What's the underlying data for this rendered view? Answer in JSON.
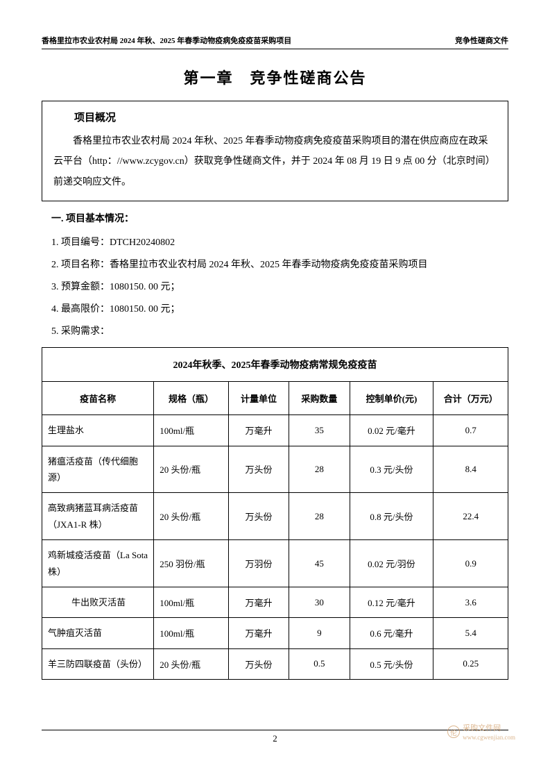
{
  "header": {
    "left": "香格里拉市农业农村局 2024 年秋、2025 年春季动物疫病免疫疫苗采购项目",
    "right": "竞争性磋商文件"
  },
  "main_title": "第一章　竞争性磋商公告",
  "overview": {
    "heading": "项目概况",
    "text": "香格里拉市农业农村局 2024 年秋、2025 年春季动物疫病免疫疫苗采购项目的潜在供应商应在政采云平台（http：//www.zcygov.cn）获取竞争性磋商文件，并于 2024 年 08 月 19 日 9 点 00 分（北京时间）前递交响应文件。"
  },
  "section1": {
    "heading": "一. 项目基本情况：",
    "item1": "1. 项目编号：DTCH20240802",
    "item2": "2. 项目名称：香格里拉市农业农村局 2024 年秋、2025 年春季动物疫病免疫疫苗采购项目",
    "item3": "3. 预算金额：1080150. 00 元；",
    "item4": "4. 最高限价：1080150. 00 元；",
    "item5": "5. 采购需求："
  },
  "table": {
    "title": "2024年秋季、2025年春季动物疫病常规免疫疫苗",
    "headers": {
      "name": "疫苗名称",
      "spec": "规格（瓶）",
      "unit": "计量单位",
      "qty": "采购数量",
      "price": "控制单价(元)",
      "total": "合计（万元）"
    },
    "rows": [
      {
        "name": "生理盐水",
        "spec": "100ml/瓶",
        "unit": "万毫升",
        "qty": "35",
        "price": "0.02 元/毫升",
        "total": "0.7"
      },
      {
        "name": "猪瘟活疫苗（传代细胞源）",
        "spec": "20 头份/瓶",
        "unit": "万头份",
        "qty": "28",
        "price": "0.3 元/头份",
        "total": "8.4"
      },
      {
        "name": "高致病猪蓝耳病活疫苗（JXA1-R 株）",
        "spec": "20 头份/瓶",
        "unit": "万头份",
        "qty": "28",
        "price": "0.8 元/头份",
        "total": "22.4"
      },
      {
        "name": "鸡新城疫活疫苗（La Sota 株）",
        "spec": "250 羽份/瓶",
        "unit": "万羽份",
        "qty": "45",
        "price": "0.02 元/羽份",
        "total": "0.9"
      },
      {
        "name": "牛出败灭活苗",
        "spec": "100ml/瓶",
        "unit": "万毫升",
        "qty": "30",
        "price": "0.12 元/毫升",
        "total": "3.6"
      },
      {
        "name": "气肿疽灭活苗",
        "spec": "100ml/瓶",
        "unit": "万毫升",
        "qty": "9",
        "price": "0.6 元/毫升",
        "total": "5.4"
      },
      {
        "name": "羊三防四联疫苗（头份）",
        "spec": "20 头份/瓶",
        "unit": "万头份",
        "qty": "0.5",
        "price": "0.5 元/头份",
        "total": "0.25"
      }
    ]
  },
  "footer": {
    "page": "2"
  },
  "watermark": {
    "icon": "伦",
    "text": "采购文件网",
    "url": "www.cgwenjian.com"
  }
}
